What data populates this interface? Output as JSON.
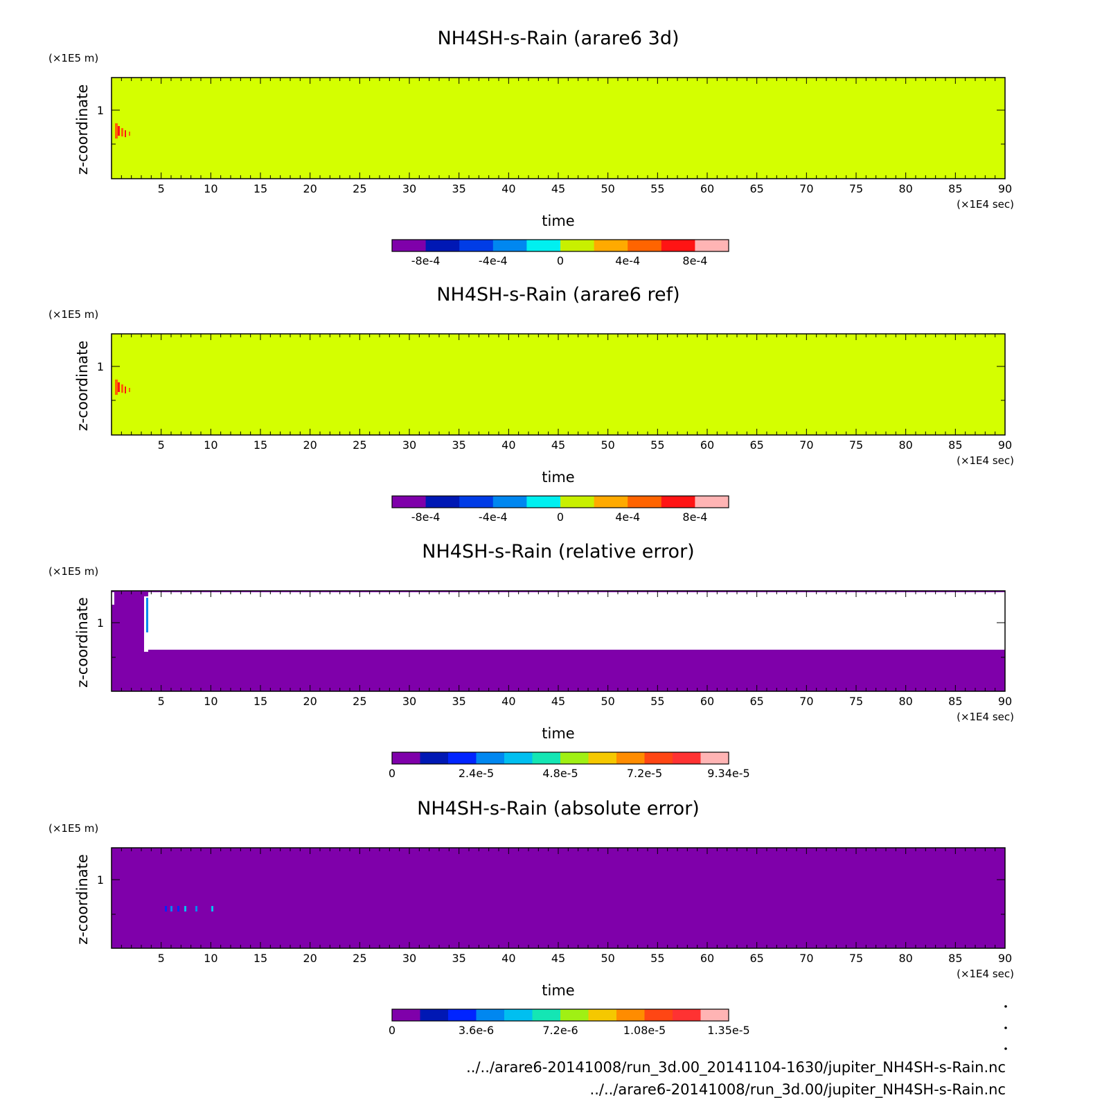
{
  "panels": [
    {
      "title": "NH4SH-s-Rain (arare6 3d)",
      "y_unit": "(×1E5 m)",
      "ylabel": "z-coordinate",
      "xlabel": "time",
      "x_unit": "(×1E4 sec)",
      "xlim": [
        0,
        90
      ],
      "x_ticks": [
        "5",
        "10",
        "15",
        "20",
        "25",
        "30",
        "35",
        "40",
        "45",
        "50",
        "55",
        "60",
        "65",
        "70",
        "75",
        "80",
        "85",
        "90"
      ],
      "y_ticks": [
        "1"
      ],
      "background": "#d4ff00",
      "colorbar": {
        "colors": [
          "#7f00aa",
          "#0018b4",
          "#003ce6",
          "#0087f0",
          "#00f0f0",
          "#c8f000",
          "#ffaa00",
          "#ff6400",
          "#ff1414",
          "#ffb4b4"
        ],
        "labels": [
          "-8e-4",
          "-4e-4",
          "0",
          "4e-4",
          "8e-4"
        ]
      }
    },
    {
      "title": "NH4SH-s-Rain (arare6 ref)",
      "y_unit": "(×1E5 m)",
      "ylabel": "z-coordinate",
      "xlabel": "time",
      "x_unit": "(×1E4 sec)",
      "xlim": [
        0,
        90
      ],
      "x_ticks": [
        "5",
        "10",
        "15",
        "20",
        "25",
        "30",
        "35",
        "40",
        "45",
        "50",
        "55",
        "60",
        "65",
        "70",
        "75",
        "80",
        "85",
        "90"
      ],
      "y_ticks": [
        "1"
      ],
      "background": "#d4ff00",
      "colorbar": {
        "colors": [
          "#7f00aa",
          "#0018b4",
          "#003ce6",
          "#0087f0",
          "#00f0f0",
          "#c8f000",
          "#ffaa00",
          "#ff6400",
          "#ff1414",
          "#ffb4b4"
        ],
        "labels": [
          "-8e-4",
          "-4e-4",
          "0",
          "4e-4",
          "8e-4"
        ]
      }
    },
    {
      "title": "NH4SH-s-Rain (relative error)",
      "y_unit": "(×1E5 m)",
      "ylabel": "z-coordinate",
      "xlabel": "time",
      "x_unit": "(×1E4 sec)",
      "xlim": [
        0,
        90
      ],
      "x_ticks": [
        "5",
        "10",
        "15",
        "20",
        "25",
        "30",
        "35",
        "40",
        "45",
        "50",
        "55",
        "60",
        "65",
        "70",
        "75",
        "80",
        "85",
        "90"
      ],
      "y_ticks": [
        "1"
      ],
      "background": "#7f00aa",
      "colorbar": {
        "colors": [
          "#7f00aa",
          "#0018b4",
          "#0024ff",
          "#0087f0",
          "#00bff0",
          "#14e6b4",
          "#a0f014",
          "#f5c800",
          "#ff8c00",
          "#ff4614",
          "#ff3232",
          "#ffb4b4"
        ],
        "labels": [
          "0",
          "2.4e-5",
          "4.8e-5",
          "7.2e-5",
          "9.34e-5"
        ]
      }
    },
    {
      "title": "NH4SH-s-Rain (absolute error)",
      "y_unit": "(×1E5 m)",
      "ylabel": "z-coordinate",
      "xlabel": "time",
      "x_unit": "(×1E4 sec)",
      "xlim": [
        0,
        90
      ],
      "x_ticks": [
        "5",
        "10",
        "15",
        "20",
        "25",
        "30",
        "35",
        "40",
        "45",
        "50",
        "55",
        "60",
        "65",
        "70",
        "75",
        "80",
        "85",
        "90"
      ],
      "y_ticks": [
        "1"
      ],
      "background": "#7f00aa",
      "colorbar": {
        "colors": [
          "#7f00aa",
          "#0018b4",
          "#0024ff",
          "#0087f0",
          "#00bff0",
          "#14e6b4",
          "#a0f014",
          "#f5c800",
          "#ff8c00",
          "#ff4614",
          "#ff3232",
          "#ffb4b4"
        ],
        "labels": [
          "0",
          "3.6e-6",
          "7.2e-6",
          "1.08e-5",
          "1.35e-5"
        ]
      }
    }
  ],
  "footer": {
    "line1": "../../arare6-20141008/run_3d.00_20141104-1630/jupiter_NH4SH-s-Rain.nc",
    "line2": "../../arare6-20141008/run_3d.00/jupiter_NH4SH-s-Rain.nc"
  },
  "chart_data": [
    {
      "type": "heatmap",
      "title": "NH4SH-s-Rain (arare6 3d)",
      "xlabel": "time",
      "ylabel": "z-coordinate",
      "xlim": [
        0,
        90
      ],
      "x_unit": "×1E4 sec",
      "y_unit": "×1E5 m",
      "color_range": [
        -0.001,
        0.001
      ],
      "dominant_value": 0,
      "notes": "small positive (4e-4 to 8e-4) patch near t=0-2, z≈0.8"
    },
    {
      "type": "heatmap",
      "title": "NH4SH-s-Rain (arare6 ref)",
      "xlabel": "time",
      "ylabel": "z-coordinate",
      "xlim": [
        0,
        90
      ],
      "x_unit": "×1E4 sec",
      "y_unit": "×1E5 m",
      "color_range": [
        -0.001,
        0.001
      ],
      "dominant_value": 0
    },
    {
      "type": "heatmap",
      "title": "NH4SH-s-Rain (relative error)",
      "xlabel": "time",
      "ylabel": "z-coordinate",
      "xlim": [
        0,
        90
      ],
      "x_unit": "×1E4 sec",
      "y_unit": "×1E5 m",
      "color_range": [
        0,
        9.34e-05
      ],
      "dominant_value": 0
    },
    {
      "type": "heatmap",
      "title": "NH4SH-s-Rain (absolute error)",
      "xlabel": "time",
      "ylabel": "z-coordinate",
      "xlim": [
        0,
        90
      ],
      "x_unit": "×1E4 sec",
      "y_unit": "×1E5 m",
      "color_range": [
        0,
        1.35e-05
      ],
      "dominant_value": 0
    }
  ]
}
